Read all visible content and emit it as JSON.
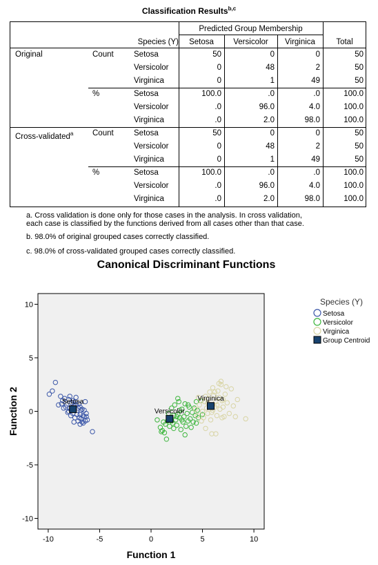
{
  "table": {
    "title": "Classification Results",
    "title_sup": "b,c",
    "group_header": "Predicted Group Membership",
    "species_header": "Species (Y)",
    "col_headers": [
      "Setosa",
      "Versicolor",
      "Virginica"
    ],
    "total_header": "Total",
    "rows": [
      {
        "section": "Original",
        "section_sup": "",
        "stat": "Count",
        "species": "Setosa",
        "v": [
          "50",
          "0",
          "0",
          "50"
        ]
      },
      {
        "section": "",
        "section_sup": "",
        "stat": "",
        "species": "Versicolor",
        "v": [
          "0",
          "48",
          "2",
          "50"
        ]
      },
      {
        "section": "",
        "section_sup": "",
        "stat": "",
        "species": "Virginica",
        "v": [
          "0",
          "1",
          "49",
          "50"
        ]
      },
      {
        "section": "",
        "section_sup": "",
        "stat": "%",
        "species": "Setosa",
        "v": [
          "100.0",
          ".0",
          ".0",
          "100.0"
        ]
      },
      {
        "section": "",
        "section_sup": "",
        "stat": "",
        "species": "Versicolor",
        "v": [
          ".0",
          "96.0",
          "4.0",
          "100.0"
        ]
      },
      {
        "section": "",
        "section_sup": "",
        "stat": "",
        "species": "Virginica",
        "v": [
          ".0",
          "2.0",
          "98.0",
          "100.0"
        ]
      },
      {
        "section": "Cross-validated",
        "section_sup": "a",
        "stat": "Count",
        "species": "Setosa",
        "v": [
          "50",
          "0",
          "0",
          "50"
        ]
      },
      {
        "section": "",
        "section_sup": "",
        "stat": "",
        "species": "Versicolor",
        "v": [
          "0",
          "48",
          "2",
          "50"
        ]
      },
      {
        "section": "",
        "section_sup": "",
        "stat": "",
        "species": "Virginica",
        "v": [
          "0",
          "1",
          "49",
          "50"
        ]
      },
      {
        "section": "",
        "section_sup": "",
        "stat": "%",
        "species": "Setosa",
        "v": [
          "100.0",
          ".0",
          ".0",
          "100.0"
        ]
      },
      {
        "section": "",
        "section_sup": "",
        "stat": "",
        "species": "Versicolor",
        "v": [
          ".0",
          "96.0",
          "4.0",
          "100.0"
        ]
      },
      {
        "section": "",
        "section_sup": "",
        "stat": "",
        "species": "Virginica",
        "v": [
          ".0",
          "2.0",
          "98.0",
          "100.0"
        ]
      }
    ],
    "footnotes": [
      "a. Cross validation is done only for those cases in the analysis. In cross validation,",
      "each case is classified by the functions derived from all cases other than that case.",
      "b. 98.0% of original grouped cases correctly classified.",
      "c. 98.0% of cross-validated grouped cases correctly classified."
    ]
  },
  "chart_data": {
    "type": "scatter",
    "title": "Canonical Discriminant Functions",
    "xlabel": "Function 1",
    "ylabel": "Function 2",
    "xlim": [
      -11,
      11
    ],
    "ylim": [
      -11,
      11
    ],
    "xticks": [
      -10,
      -5,
      0,
      5,
      10
    ],
    "yticks": [
      -10,
      -5,
      0,
      5,
      10
    ],
    "grid": false,
    "background": "#f0f0f0",
    "legend": {
      "title": "Species (Y)",
      "placement": "right",
      "entries": [
        "Setosa",
        "Versicolor",
        "Virginica",
        "Group Centroid"
      ]
    },
    "series": [
      {
        "name": "Setosa",
        "color": "#3a56a8",
        "marker": "open-circle",
        "points": [
          [
            -9.9,
            1.6
          ],
          [
            -9.6,
            1.9
          ],
          [
            -9.3,
            2.7
          ],
          [
            -8.8,
            1.4
          ],
          [
            -8.6,
            1.0
          ],
          [
            -8.4,
            1.2
          ],
          [
            -8.2,
            0.6
          ],
          [
            -8.0,
            1.1
          ],
          [
            -7.9,
            0.3
          ],
          [
            -7.7,
            0.8
          ],
          [
            -7.6,
            -0.2
          ],
          [
            -7.5,
            0.5
          ],
          [
            -7.4,
            -0.6
          ],
          [
            -7.3,
            1.3
          ],
          [
            -7.2,
            0.1
          ],
          [
            -7.1,
            -0.9
          ],
          [
            -7.0,
            0.7
          ],
          [
            -6.9,
            -0.3
          ],
          [
            -6.8,
            -0.7
          ],
          [
            -6.7,
            0.2
          ],
          [
            -6.6,
            -1.1
          ],
          [
            -6.5,
            -0.5
          ],
          [
            -6.4,
            0.9
          ],
          [
            -6.3,
            -0.2
          ],
          [
            -6.2,
            -0.8
          ],
          [
            -8.1,
            -0.1
          ],
          [
            -7.8,
            -0.4
          ],
          [
            -7.6,
            1.0
          ],
          [
            -7.4,
            0.9
          ],
          [
            -7.2,
            -0.3
          ],
          [
            -7.0,
            -0.6
          ],
          [
            -6.9,
            0.4
          ],
          [
            -6.7,
            -1.0
          ],
          [
            -6.6,
            -0.4
          ],
          [
            -8.3,
            0.4
          ],
          [
            -8.5,
            0.3
          ],
          [
            -9.0,
            0.6
          ],
          [
            -7.9,
            1.4
          ],
          [
            -7.3,
            0.6
          ],
          [
            -6.8,
            0.1
          ],
          [
            -6.4,
            -0.9
          ],
          [
            -5.7,
            -1.9
          ],
          [
            -8.7,
            0.7
          ],
          [
            -7.7,
            0.2
          ],
          [
            -7.1,
            0.3
          ],
          [
            -6.5,
            0.1
          ],
          [
            -6.3,
            -0.5
          ],
          [
            -7.5,
            -1.0
          ],
          [
            -8.0,
            0.0
          ],
          [
            -6.9,
            -1.2
          ]
        ]
      },
      {
        "name": "Versicolor",
        "color": "#3bb53b",
        "marker": "open-circle",
        "points": [
          [
            0.6,
            -0.8
          ],
          [
            0.9,
            -1.5
          ],
          [
            1.1,
            -1.8
          ],
          [
            1.3,
            -2.0
          ],
          [
            1.4,
            -1.2
          ],
          [
            1.5,
            -2.6
          ],
          [
            1.6,
            -0.9
          ],
          [
            1.7,
            -0.2
          ],
          [
            1.8,
            -1.4
          ],
          [
            1.9,
            -0.6
          ],
          [
            2.0,
            0.3
          ],
          [
            2.1,
            -1.1
          ],
          [
            2.2,
            -0.4
          ],
          [
            2.3,
            0.6
          ],
          [
            2.4,
            -0.8
          ],
          [
            2.5,
            -1.3
          ],
          [
            2.6,
            -0.3
          ],
          [
            2.7,
            0.9
          ],
          [
            2.8,
            -0.6
          ],
          [
            2.9,
            -1.7
          ],
          [
            3.0,
            0.2
          ],
          [
            3.1,
            -1.0
          ],
          [
            3.2,
            -0.5
          ],
          [
            3.3,
            0.7
          ],
          [
            3.4,
            -1.4
          ],
          [
            3.5,
            -0.2
          ],
          [
            3.6,
            -0.9
          ],
          [
            3.7,
            0.4
          ],
          [
            3.8,
            -0.7
          ],
          [
            3.9,
            -1.5
          ],
          [
            4.0,
            -0.1
          ],
          [
            4.1,
            -1.0
          ],
          [
            4.2,
            0.3
          ],
          [
            4.3,
            -0.4
          ],
          [
            4.4,
            -1.1
          ],
          [
            4.5,
            0.1
          ],
          [
            4.6,
            -0.6
          ],
          [
            4.8,
            1.0
          ],
          [
            5.0,
            -0.3
          ],
          [
            2.0,
            -0.9
          ],
          [
            2.5,
            -0.5
          ],
          [
            3.0,
            -0.8
          ],
          [
            1.2,
            -1.0
          ],
          [
            1.0,
            -1.9
          ],
          [
            3.3,
            -2.2
          ],
          [
            2.2,
            -1.6
          ],
          [
            2.8,
            0.1
          ],
          [
            3.6,
            0.6
          ],
          [
            4.4,
            0.9
          ],
          [
            2.6,
            1.2
          ]
        ]
      },
      {
        "name": "Virginica",
        "color": "#d8d4a4",
        "marker": "open-circle",
        "points": [
          [
            4.3,
            0.2
          ],
          [
            4.5,
            -0.4
          ],
          [
            4.7,
            0.6
          ],
          [
            4.9,
            1.0
          ],
          [
            5.0,
            0.0
          ],
          [
            5.1,
            -0.6
          ],
          [
            5.2,
            0.9
          ],
          [
            5.3,
            1.4
          ],
          [
            5.4,
            0.3
          ],
          [
            5.5,
            -0.2
          ],
          [
            5.6,
            1.2
          ],
          [
            5.7,
            1.8
          ],
          [
            5.8,
            0.6
          ],
          [
            5.9,
            -0.1
          ],
          [
            6.0,
            2.2
          ],
          [
            6.1,
            1.5
          ],
          [
            6.2,
            0.4
          ],
          [
            6.3,
            0.9
          ],
          [
            6.4,
            -0.4
          ],
          [
            6.5,
            1.9
          ],
          [
            6.6,
            1.3
          ],
          [
            6.7,
            0.2
          ],
          [
            6.8,
            2.5
          ],
          [
            6.9,
            1.0
          ],
          [
            7.0,
            0.4
          ],
          [
            7.1,
            -0.5
          ],
          [
            7.2,
            1.6
          ],
          [
            7.4,
            0.8
          ],
          [
            7.6,
            -0.2
          ],
          [
            7.8,
            2.1
          ],
          [
            8.0,
            0.5
          ],
          [
            8.2,
            -0.5
          ],
          [
            8.4,
            1.1
          ],
          [
            9.2,
            -0.7
          ],
          [
            4.9,
            -0.9
          ],
          [
            5.3,
            -1.6
          ],
          [
            5.9,
            -2.1
          ],
          [
            6.3,
            -2.1
          ],
          [
            6.8,
            2.8
          ],
          [
            7.3,
            2.3
          ],
          [
            6.0,
            0.1
          ],
          [
            5.5,
            0.8
          ],
          [
            6.9,
            -0.6
          ],
          [
            5.7,
            0.4
          ],
          [
            6.4,
            0.6
          ],
          [
            4.6,
            1.3
          ],
          [
            6.2,
            1.8
          ],
          [
            7.0,
            1.1
          ],
          [
            5.8,
            -0.8
          ],
          [
            6.6,
            2.6
          ]
        ]
      }
    ],
    "centroids": [
      {
        "name": "Setosa",
        "x": -7.6,
        "y": 0.2
      },
      {
        "name": "Versicolor",
        "x": 1.8,
        "y": -0.7
      },
      {
        "name": "Virginica",
        "x": 5.8,
        "y": 0.5
      }
    ],
    "centroid_color": "#17426e"
  }
}
